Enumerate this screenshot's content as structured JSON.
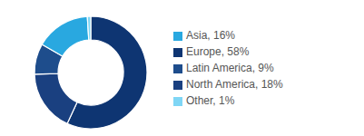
{
  "chart_data": {
    "type": "donut",
    "categories": [
      "Europe, 58%",
      "North America, 18%",
      "Latin America, 9%",
      "Asia, 16%",
      "Other, 1%"
    ],
    "values": [
      58,
      18,
      9,
      16,
      1
    ],
    "colors": [
      "#0e3572",
      "#1a4080",
      "#1e4d8c",
      "#29a8e0",
      "#7fd6f5"
    ],
    "legend": "right"
  }
}
